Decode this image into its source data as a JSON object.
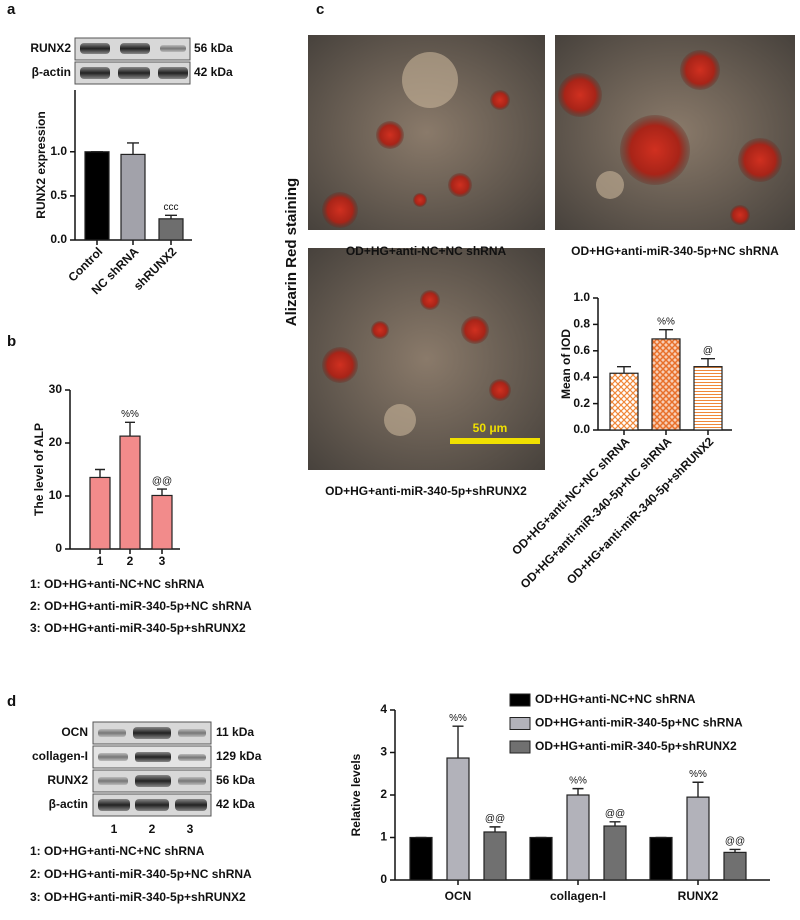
{
  "panel_labels": [
    "a",
    "b",
    "c",
    "d"
  ],
  "blot_a": {
    "rows": [
      "RUNX2",
      "β-actin"
    ],
    "sizes": [
      "56 kDa",
      "42 kDa"
    ]
  },
  "micrographs": {
    "side_label": "Alizarin Red staining",
    "captions": [
      "OD+HG+anti-NC+NC shRNA",
      "OD+HG+anti-miR-340-5p+NC shRNA",
      "OD+HG+anti-miR-340-5p+shRUNX2"
    ],
    "scale_bar": "50 μm"
  },
  "legend_b": [
    "1: OD+HG+anti-NC+NC shRNA",
    "2: OD+HG+anti-miR-340-5p+NC shRNA",
    "3: OD+HG+anti-miR-340-5p+shRUNX2"
  ],
  "blot_d": {
    "rows": [
      "OCN",
      "collagen-I",
      "RUNX2",
      "β-actin"
    ],
    "sizes": [
      "11 kDa",
      "129 kDa",
      "56 kDa",
      "42 kDa"
    ],
    "lanes": [
      "1",
      "2",
      "3"
    ],
    "legend": [
      "1: OD+HG+anti-NC+NC shRNA",
      "2: OD+HG+anti-miR-340-5p+NC shRNA",
      "3: OD+HG+anti-miR-340-5p+shRUNX2"
    ]
  },
  "chart_data": [
    {
      "type": "bar",
      "ylabel": "RUNX2 expression",
      "categories": [
        "Control",
        "NC shRNA",
        "shRUNX2"
      ],
      "values": [
        1.0,
        0.97,
        0.24
      ],
      "errors": [
        0,
        0.13,
        0.04
      ],
      "colors": [
        "#000000",
        "#a2a2aa",
        "#6e6e6e"
      ],
      "annotations": [
        null,
        null,
        "ccc"
      ],
      "ylim": [
        0,
        1.7
      ],
      "yticks": [
        {
          "value": 0,
          "label": "0.0"
        },
        {
          "value": 0.5,
          "label": "0.5"
        },
        {
          "value": 1,
          "label": "1.0"
        }
      ]
    },
    {
      "type": "bar",
      "ylabel": "The level of ALP",
      "categories": [
        "1",
        "2",
        "3"
      ],
      "values": [
        13.5,
        21.3,
        10.1
      ],
      "errors": [
        1.5,
        2.6,
        1.2
      ],
      "colors": [
        "#f28b8b",
        "#f28b8b",
        "#f28b8b"
      ],
      "annotations": [
        null,
        "%%",
        "@@"
      ],
      "ylim": [
        0,
        30
      ],
      "yticks": [
        0,
        10,
        20,
        30
      ]
    },
    {
      "type": "bar",
      "ylabel": "Mean of IOD",
      "categories": [
        "OD+HG+anti-NC+NC shRNA",
        "OD+HG+anti-miR-340-5p+NC shRNA",
        "OD+HG+anti-miR-340-5p+shRUNX2"
      ],
      "values": [
        0.43,
        0.69,
        0.48
      ],
      "errors": [
        0.05,
        0.07,
        0.06
      ],
      "colors": [
        "#f0883a",
        "#e8702a",
        "#f0883a"
      ],
      "annotations": [
        null,
        "%%",
        "@"
      ],
      "ylim": [
        0,
        1.0
      ],
      "yticks": [
        {
          "value": 0,
          "label": "0.0"
        },
        {
          "value": 0.2,
          "label": "0.2"
        },
        {
          "value": 0.4,
          "label": "0.4"
        },
        {
          "value": 0.6,
          "label": "0.6"
        },
        {
          "value": 0.8,
          "label": "0.8"
        },
        {
          "value": 1,
          "label": "1.0"
        }
      ]
    },
    {
      "type": "grouped_bar",
      "ylabel": "Relative levels",
      "categories": [
        "OCN",
        "collagen-I",
        "RUNX2"
      ],
      "series": [
        {
          "name": "OD+HG+anti-NC+NC shRNA",
          "color": "#000000",
          "values": [
            1,
            1,
            1
          ],
          "errors": [
            0,
            0,
            0
          ],
          "annotations": [
            null,
            null,
            null
          ]
        },
        {
          "name": "OD+HG+anti-miR-340-5p+NC shRNA",
          "color": "#b2b2ba",
          "values": [
            2.87,
            2.0,
            1.95
          ],
          "errors": [
            0.75,
            0.15,
            0.35
          ],
          "annotations": [
            "%%",
            "%%",
            "%%"
          ]
        },
        {
          "name": "OD+HG+anti-miR-340-5p+shRUNX2",
          "color": "#707070",
          "values": [
            1.13,
            1.27,
            0.65
          ],
          "errors": [
            0.12,
            0.1,
            0.07
          ],
          "annotations": [
            "@@",
            "@@",
            "@@"
          ]
        }
      ],
      "ylim": [
        0,
        4
      ],
      "yticks": [
        0,
        1,
        2,
        3,
        4
      ]
    }
  ]
}
